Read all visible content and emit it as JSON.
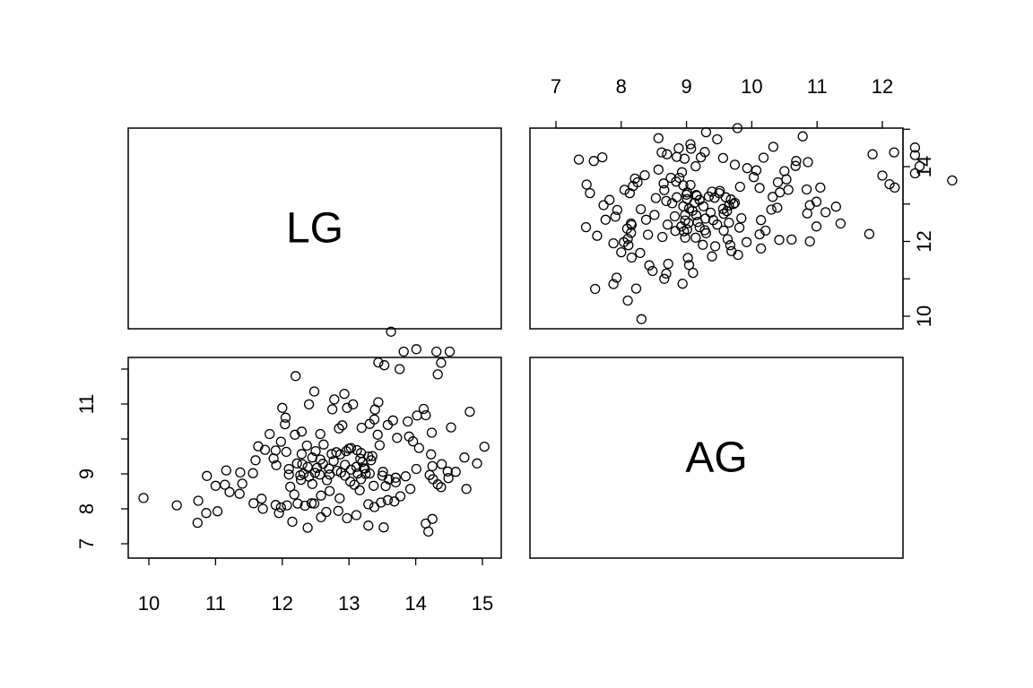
{
  "chart_data": {
    "type": "scatter",
    "variables": [
      "LG",
      "AG"
    ],
    "ticks": {
      "LG": [
        "10",
        "11",
        "12",
        "13",
        "14",
        "15"
      ],
      "AG": [
        "7",
        "8",
        "9",
        "10",
        "11",
        "12"
      ]
    },
    "series": [
      {
        "x_var": "LG",
        "y_var": "AG",
        "points": [
          [
            14.31,
            12.5
          ],
          [
            14.51,
            12.5
          ],
          [
            14.38,
            12.18
          ],
          [
            13.82,
            12.5
          ],
          [
            14.01,
            12.57
          ],
          [
            14.33,
            11.85
          ],
          [
            13.76,
            12.0
          ],
          [
            14.15,
            10.68
          ],
          [
            14.12,
            10.86
          ],
          [
            13.63,
            13.07
          ],
          [
            13.44,
            12.19
          ],
          [
            13.53,
            12.11
          ],
          [
            13.44,
            11.05
          ],
          [
            12.93,
            11.29
          ],
          [
            12.97,
            10.89
          ],
          [
            12.75,
            10.85
          ],
          [
            12.4,
            10.99
          ],
          [
            12.05,
            10.61
          ],
          [
            12.19,
            10.12
          ],
          [
            12.9,
            10.39
          ],
          [
            13.38,
            10.56
          ],
          [
            13.43,
            10.12
          ],
          [
            13.46,
            9.82
          ],
          [
            13.35,
            9.51
          ],
          [
            13.33,
            9.39
          ],
          [
            13.17,
            9.43
          ],
          [
            13.18,
            9.6
          ],
          [
            13.03,
            9.74
          ],
          [
            12.96,
            9.65
          ],
          [
            12.81,
            9.62
          ],
          [
            12.77,
            9.37
          ],
          [
            12.57,
            9.41
          ],
          [
            12.45,
            9.47
          ],
          [
            12.38,
            9.2
          ],
          [
            12.22,
            9.3
          ],
          [
            12.1,
            9.14
          ],
          [
            11.91,
            9.25
          ],
          [
            11.9,
            9.67
          ],
          [
            12.37,
            9.81
          ],
          [
            12.5,
            9.65
          ],
          [
            12.74,
            9.57
          ],
          [
            12.87,
            9.56
          ],
          [
            13.0,
            9.72
          ],
          [
            13.12,
            9.68
          ],
          [
            13.29,
            9.5
          ],
          [
            13.2,
            9.34
          ],
          [
            13.22,
            9.16
          ],
          [
            13.03,
            9.12
          ],
          [
            12.88,
            9.04
          ],
          [
            12.82,
            9.09
          ],
          [
            12.7,
            9.15
          ],
          [
            12.71,
            8.98
          ],
          [
            12.56,
            8.98
          ],
          [
            12.49,
            9.03
          ],
          [
            12.4,
            8.92
          ],
          [
            12.32,
            9.01
          ],
          [
            12.27,
            8.96
          ],
          [
            12.1,
            8.98
          ],
          [
            12.3,
            9.28
          ],
          [
            13.18,
            8.85
          ],
          [
            13.25,
            9.0
          ],
          [
            13.13,
            9.01
          ],
          [
            13.6,
            8.84
          ],
          [
            13.7,
            8.76
          ],
          [
            13.85,
            8.93
          ],
          [
            13.5,
            8.95
          ],
          [
            13.51,
            9.06
          ],
          [
            14.01,
            9.14
          ],
          [
            14.25,
            9.22
          ],
          [
            14.39,
            9.28
          ],
          [
            14.48,
            9.07
          ],
          [
            14.6,
            9.06
          ],
          [
            14.73,
            9.47
          ],
          [
            14.92,
            9.3
          ],
          [
            14.76,
            8.57
          ],
          [
            14.49,
            8.88
          ],
          [
            14.33,
            8.7
          ],
          [
            14.38,
            8.62
          ],
          [
            14.21,
            8.97
          ],
          [
            14.26,
            8.85
          ],
          [
            13.92,
            8.57
          ],
          [
            13.77,
            8.36
          ],
          [
            13.68,
            8.21
          ],
          [
            13.58,
            8.25
          ],
          [
            13.48,
            8.18
          ],
          [
            13.38,
            8.05
          ],
          [
            13.29,
            8.13
          ],
          [
            13.11,
            7.82
          ],
          [
            12.84,
            7.94
          ],
          [
            12.66,
            7.91
          ],
          [
            12.48,
            8.15
          ],
          [
            12.44,
            8.16
          ],
          [
            12.34,
            8.09
          ],
          [
            12.23,
            8.15
          ],
          [
            12.07,
            8.1
          ],
          [
            11.98,
            8.04
          ],
          [
            11.9,
            8.11
          ],
          [
            11.71,
            8.0
          ],
          [
            11.57,
            8.16
          ],
          [
            11.36,
            8.43
          ],
          [
            11.4,
            8.72
          ],
          [
            11.21,
            8.48
          ],
          [
            11.14,
            8.69
          ],
          [
            11.0,
            8.66
          ],
          [
            11.03,
            7.93
          ],
          [
            10.86,
            7.88
          ],
          [
            10.73,
            7.6
          ],
          [
            10.42,
            8.1
          ],
          [
            9.92,
            8.31
          ],
          [
            10.74,
            8.23
          ],
          [
            10.87,
            8.94
          ],
          [
            11.16,
            9.1
          ],
          [
            11.37,
            9.04
          ],
          [
            11.6,
            9.39
          ],
          [
            11.74,
            9.69
          ],
          [
            11.98,
            9.92
          ],
          [
            12.04,
            10.42
          ],
          [
            12.29,
            10.21
          ],
          [
            12.57,
            10.14
          ],
          [
            12.85,
            10.3
          ],
          [
            13.31,
            10.43
          ],
          [
            13.58,
            10.4
          ],
          [
            13.88,
            10.5
          ],
          [
            14.02,
            10.67
          ],
          [
            14.24,
            10.18
          ],
          [
            14.53,
            10.33
          ],
          [
            14.81,
            10.78
          ],
          [
            15.03,
            9.78
          ],
          [
            14.19,
            7.35
          ],
          [
            14.25,
            7.71
          ],
          [
            14.15,
            7.58
          ],
          [
            13.52,
            7.47
          ],
          [
            13.29,
            7.52
          ],
          [
            12.97,
            7.73
          ],
          [
            12.58,
            7.76
          ],
          [
            12.38,
            7.46
          ],
          [
            12.15,
            7.63
          ],
          [
            11.95,
            7.88
          ],
          [
            11.69,
            8.29
          ],
          [
            11.56,
            9.02
          ],
          [
            11.64,
            9.79
          ],
          [
            11.81,
            10.14
          ],
          [
            12.0,
            10.89
          ],
          [
            12.2,
            11.8
          ],
          [
            12.48,
            11.36
          ],
          [
            12.78,
            11.13
          ],
          [
            13.06,
            10.99
          ],
          [
            13.39,
            10.84
          ],
          [
            13.66,
            10.53
          ],
          [
            13.9,
            10.07
          ],
          [
            13.96,
            9.93
          ],
          [
            14.05,
            9.74
          ],
          [
            14.23,
            9.56
          ],
          [
            13.72,
            10.03
          ],
          [
            13.19,
            10.32
          ],
          [
            12.62,
            9.84
          ],
          [
            12.29,
            9.57
          ],
          [
            11.87,
            9.44
          ],
          [
            12.58,
            8.38
          ],
          [
            12.18,
            8.41
          ],
          [
            12.86,
            8.3
          ],
          [
            13.37,
            8.66
          ],
          [
            13.7,
            8.89
          ],
          [
            13.11,
            9.2
          ],
          [
            12.52,
            9.17
          ],
          [
            12.06,
            9.63
          ],
          [
            13.24,
            9.15
          ],
          [
            12.94,
            9.26
          ],
          [
            12.61,
            9.29
          ],
          [
            12.12,
            8.63
          ],
          [
            12.71,
            8.51
          ],
          [
            13.16,
            8.53
          ],
          [
            13.55,
            8.65
          ],
          [
            12.45,
            8.71
          ],
          [
            13.02,
            8.78
          ],
          [
            13.08,
            8.69
          ],
          [
            12.28,
            8.83
          ],
          [
            12.67,
            8.82
          ],
          [
            12.94,
            8.95
          ],
          [
            13.31,
            9.01
          ]
        ]
      }
    ]
  }
}
